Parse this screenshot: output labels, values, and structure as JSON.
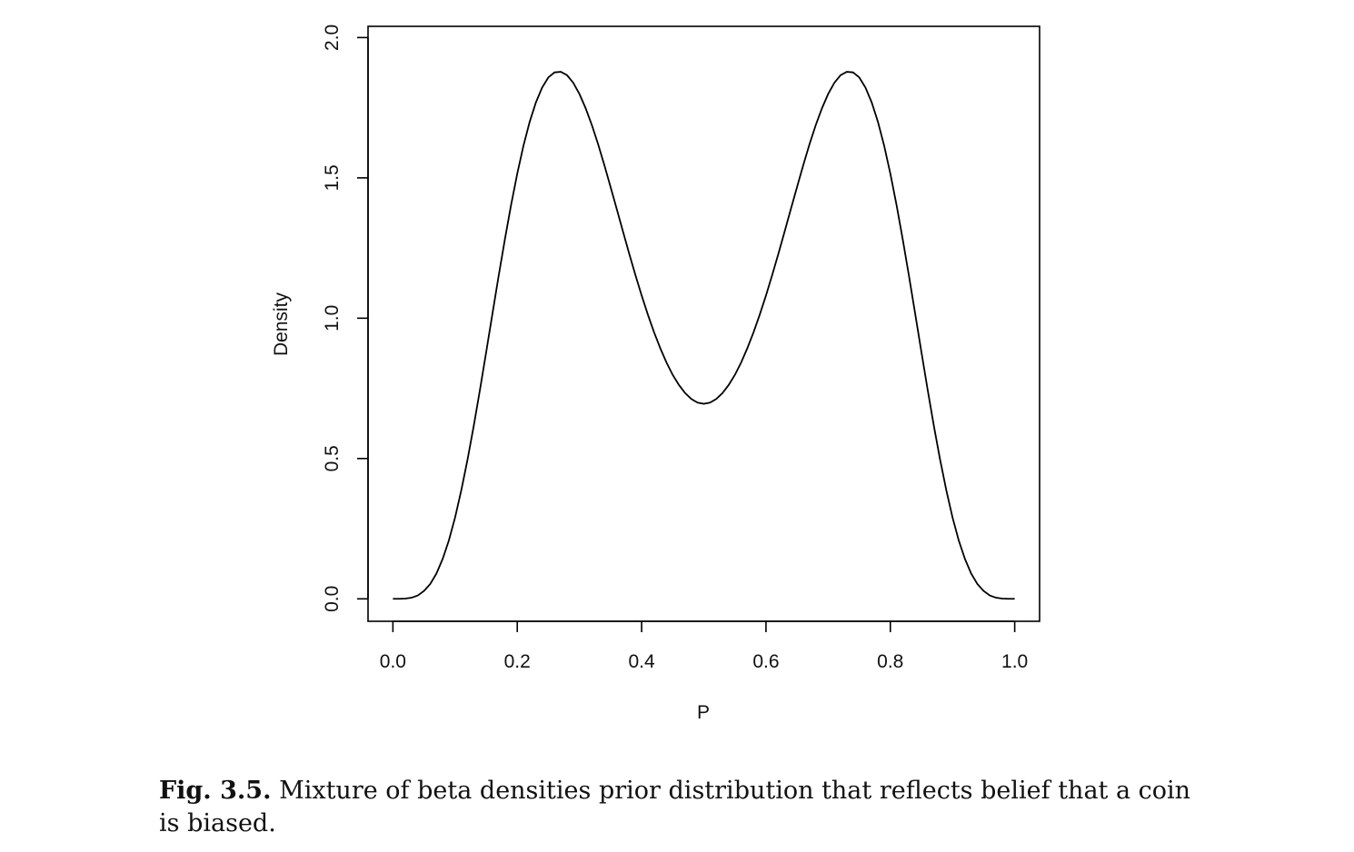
{
  "chart_data": {
    "type": "line",
    "title": "",
    "xlabel": "P",
    "ylabel": "Density",
    "xlim": [
      -0.04,
      1.04
    ],
    "ylim": [
      -0.08,
      2.04
    ],
    "xticks": [
      0.0,
      0.2,
      0.4,
      0.6,
      0.8,
      1.0
    ],
    "xtick_labels": [
      "0.0",
      "0.2",
      "0.4",
      "0.6",
      "0.8",
      "1.0"
    ],
    "yticks": [
      0.0,
      0.5,
      1.0,
      1.5,
      2.0
    ],
    "ytick_labels": [
      "0.0",
      "0.5",
      "1.0",
      "1.5",
      "2.0"
    ],
    "grid": false,
    "legend": "none",
    "line_color": "#000000",
    "series": [
      {
        "x": [
          0.0,
          0.01,
          0.02,
          0.03,
          0.04,
          0.05,
          0.06,
          0.07,
          0.08,
          0.09,
          0.1,
          0.11,
          0.12,
          0.13,
          0.14,
          0.15,
          0.16,
          0.17,
          0.18,
          0.19,
          0.2,
          0.21,
          0.22,
          0.23,
          0.24,
          0.25,
          0.26,
          0.27,
          0.28,
          0.29,
          0.3,
          0.31,
          0.32,
          0.33,
          0.34,
          0.35,
          0.36,
          0.37,
          0.38,
          0.39,
          0.4,
          0.41,
          0.42,
          0.43,
          0.44,
          0.45,
          0.46,
          0.47,
          0.48,
          0.49,
          0.5,
          0.51,
          0.52,
          0.53,
          0.54,
          0.55,
          0.56,
          0.57,
          0.58,
          0.59,
          0.6,
          0.61,
          0.62,
          0.63,
          0.64,
          0.65,
          0.66,
          0.67,
          0.68,
          0.69,
          0.7,
          0.71,
          0.72,
          0.73,
          0.74,
          0.75,
          0.76,
          0.77,
          0.78,
          0.79,
          0.8,
          0.81,
          0.82,
          0.83,
          0.84,
          0.85,
          0.86,
          0.87,
          0.88,
          0.89,
          0.9,
          0.91,
          0.92,
          0.93,
          0.94,
          0.95,
          0.96,
          0.97,
          0.98,
          0.99,
          1.0
        ],
        "y": [
          0.0,
          0.0,
          0.001,
          0.004,
          0.012,
          0.028,
          0.053,
          0.09,
          0.142,
          0.208,
          0.29,
          0.387,
          0.496,
          0.616,
          0.745,
          0.879,
          1.015,
          1.15,
          1.28,
          1.403,
          1.515,
          1.615,
          1.7,
          1.769,
          1.822,
          1.858,
          1.876,
          1.878,
          1.866,
          1.839,
          1.799,
          1.748,
          1.688,
          1.62,
          1.546,
          1.468,
          1.389,
          1.309,
          1.23,
          1.154,
          1.081,
          1.013,
          0.95,
          0.893,
          0.842,
          0.798,
          0.762,
          0.733,
          0.712,
          0.699,
          0.695,
          0.699,
          0.712,
          0.733,
          0.762,
          0.798,
          0.842,
          0.893,
          0.95,
          1.013,
          1.081,
          1.154,
          1.23,
          1.309,
          1.389,
          1.468,
          1.546,
          1.62,
          1.688,
          1.748,
          1.799,
          1.839,
          1.866,
          1.878,
          1.876,
          1.858,
          1.822,
          1.769,
          1.7,
          1.615,
          1.515,
          1.403,
          1.28,
          1.15,
          1.015,
          0.879,
          0.745,
          0.616,
          0.496,
          0.387,
          0.29,
          0.208,
          0.142,
          0.09,
          0.053,
          0.028,
          0.012,
          0.004,
          0.001,
          0.0,
          0.0
        ]
      }
    ]
  },
  "caption": {
    "label": "Fig. 3.5.",
    "text": " Mixture of beta densities prior distribution that reflects belief that a coin is biased."
  }
}
